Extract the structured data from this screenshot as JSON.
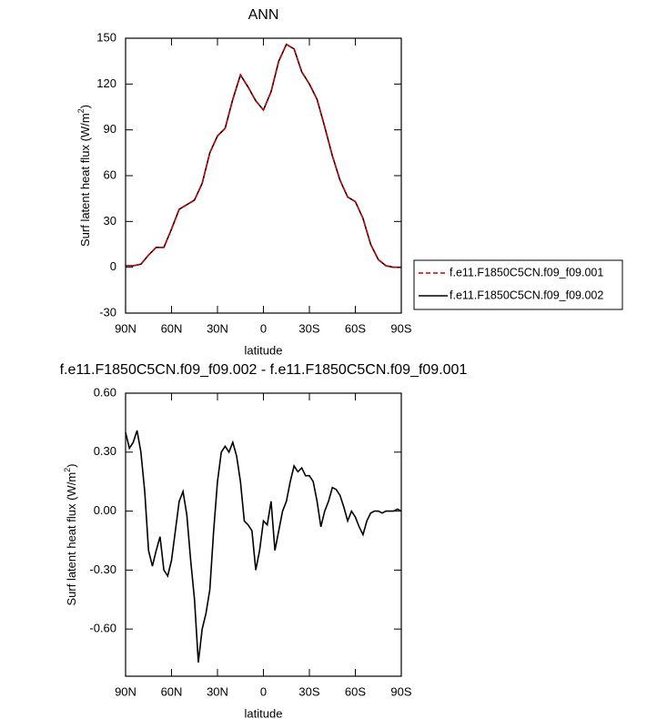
{
  "chart_data": [
    {
      "type": "line",
      "title": "ANN",
      "xlabel": "latitude",
      "ylabel": [
        "Surf latent heat flux (W/m",
        "2",
        ")"
      ],
      "x": [
        90,
        85,
        80,
        75,
        70,
        65,
        60,
        55,
        50,
        45,
        40,
        35,
        30,
        25,
        20,
        15,
        10,
        5,
        0,
        -5,
        -10,
        -15,
        -20,
        -25,
        -30,
        -35,
        -40,
        -45,
        -50,
        -55,
        -60,
        -65,
        -70,
        -75,
        -80,
        -85,
        -90
      ],
      "series": [
        {
          "name": "f.e11.F1850C5CN.f09_f09.001",
          "color": "#cc0000",
          "dash": true,
          "values": [
            1,
            1,
            2,
            8,
            13,
            13,
            25,
            38,
            41,
            44,
            55,
            75,
            86,
            91,
            110,
            126,
            118,
            109,
            103,
            115,
            135,
            146,
            143,
            128,
            120,
            110,
            92,
            73,
            57,
            46,
            43,
            32,
            15,
            5,
            1,
            0,
            0
          ]
        },
        {
          "name": "f.e11.F1850C5CN.f09_f09.002",
          "color": "#000000",
          "dash": false,
          "values": [
            1,
            1,
            2,
            8,
            13,
            13,
            25,
            38,
            41,
            44,
            55,
            75,
            86,
            91,
            110,
            126,
            118,
            109,
            103,
            115,
            135,
            146,
            143,
            128,
            120,
            110,
            92,
            73,
            57,
            46,
            43,
            32,
            15,
            5,
            1,
            0,
            0
          ]
        }
      ],
      "xlim": [
        90,
        -90
      ],
      "xticks": [
        {
          "value": 90,
          "label": "90N"
        },
        {
          "value": 60,
          "label": "60N"
        },
        {
          "value": 30,
          "label": "30N"
        },
        0,
        {
          "value": -30,
          "label": "30S"
        },
        {
          "value": -60,
          "label": "60S"
        },
        {
          "value": -90,
          "label": "90S"
        }
      ],
      "ylim": [
        -30,
        150
      ],
      "yticks": [
        -30,
        0,
        30,
        60,
        90,
        120,
        150
      ],
      "legend": "right"
    },
    {
      "type": "line",
      "title": "f.e11.F1850C5CN.f09_f09.002 - f.e11.F1850C5CN.f09_f09.001",
      "xlabel": "latitude",
      "ylabel": [
        "Surf latent heat flux (W/m",
        "2",
        ")"
      ],
      "x": [
        90,
        87.5,
        85,
        82.5,
        80,
        77.5,
        75,
        72.5,
        70,
        67.5,
        65,
        62.5,
        60,
        57.5,
        55,
        52.5,
        50,
        47.5,
        45,
        42.5,
        40,
        37.5,
        35,
        32.5,
        30,
        27.5,
        25,
        22.5,
        20,
        17.5,
        15,
        12.5,
        10,
        7.5,
        5,
        2.5,
        0,
        -2.5,
        -5,
        -7.5,
        -10,
        -12.5,
        -15,
        -17.5,
        -20,
        -22.5,
        -25,
        -27.5,
        -30,
        -32.5,
        -35,
        -37.5,
        -40,
        -42.5,
        -45,
        -47.5,
        -50,
        -52.5,
        -55,
        -57.5,
        -60,
        -62.5,
        -65,
        -67.5,
        -70,
        -72.5,
        -75,
        -77.5,
        -80,
        -82.5,
        -85,
        -87.5,
        -90
      ],
      "series": [
        {
          "color": "#000000",
          "dash": false,
          "values": [
            0.4,
            0.32,
            0.35,
            0.41,
            0.3,
            0.1,
            -0.2,
            -0.28,
            -0.2,
            -0.13,
            -0.3,
            -0.33,
            -0.25,
            -0.1,
            0.05,
            0.1,
            -0.02,
            -0.25,
            -0.45,
            -0.77,
            -0.6,
            -0.52,
            -0.4,
            -0.1,
            0.15,
            0.3,
            0.33,
            0.3,
            0.35,
            0.28,
            0.15,
            -0.05,
            -0.07,
            -0.1,
            -0.3,
            -0.2,
            -0.05,
            -0.07,
            0.05,
            -0.2,
            -0.1,
            0.0,
            0.05,
            0.15,
            0.23,
            0.2,
            0.22,
            0.18,
            0.18,
            0.15,
            0.05,
            -0.08,
            0.0,
            0.05,
            0.12,
            0.11,
            0.08,
            0.02,
            -0.05,
            0.0,
            -0.03,
            -0.08,
            -0.12,
            -0.05,
            -0.01,
            0.0,
            0.0,
            -0.01,
            0.0,
            0.0,
            0.0,
            0.01,
            0.0
          ]
        }
      ],
      "xlim": [
        90,
        -90
      ],
      "xticks": [
        {
          "value": 90,
          "label": "90N"
        },
        {
          "value": 60,
          "label": "60N"
        },
        {
          "value": 30,
          "label": "30N"
        },
        0,
        {
          "value": -30,
          "label": "30S"
        },
        {
          "value": -60,
          "label": "60S"
        },
        {
          "value": -90,
          "label": "90S"
        }
      ],
      "ylim": [
        -0.84,
        0.6
      ],
      "yticks": [
        {
          "value": -0.6,
          "label": "-0.60"
        },
        {
          "value": -0.3,
          "label": "-0.30"
        },
        {
          "value": 0,
          "label": "0.00"
        },
        {
          "value": 0.3,
          "label": "0.30"
        },
        {
          "value": 0.6,
          "label": "0.60"
        }
      ]
    }
  ]
}
